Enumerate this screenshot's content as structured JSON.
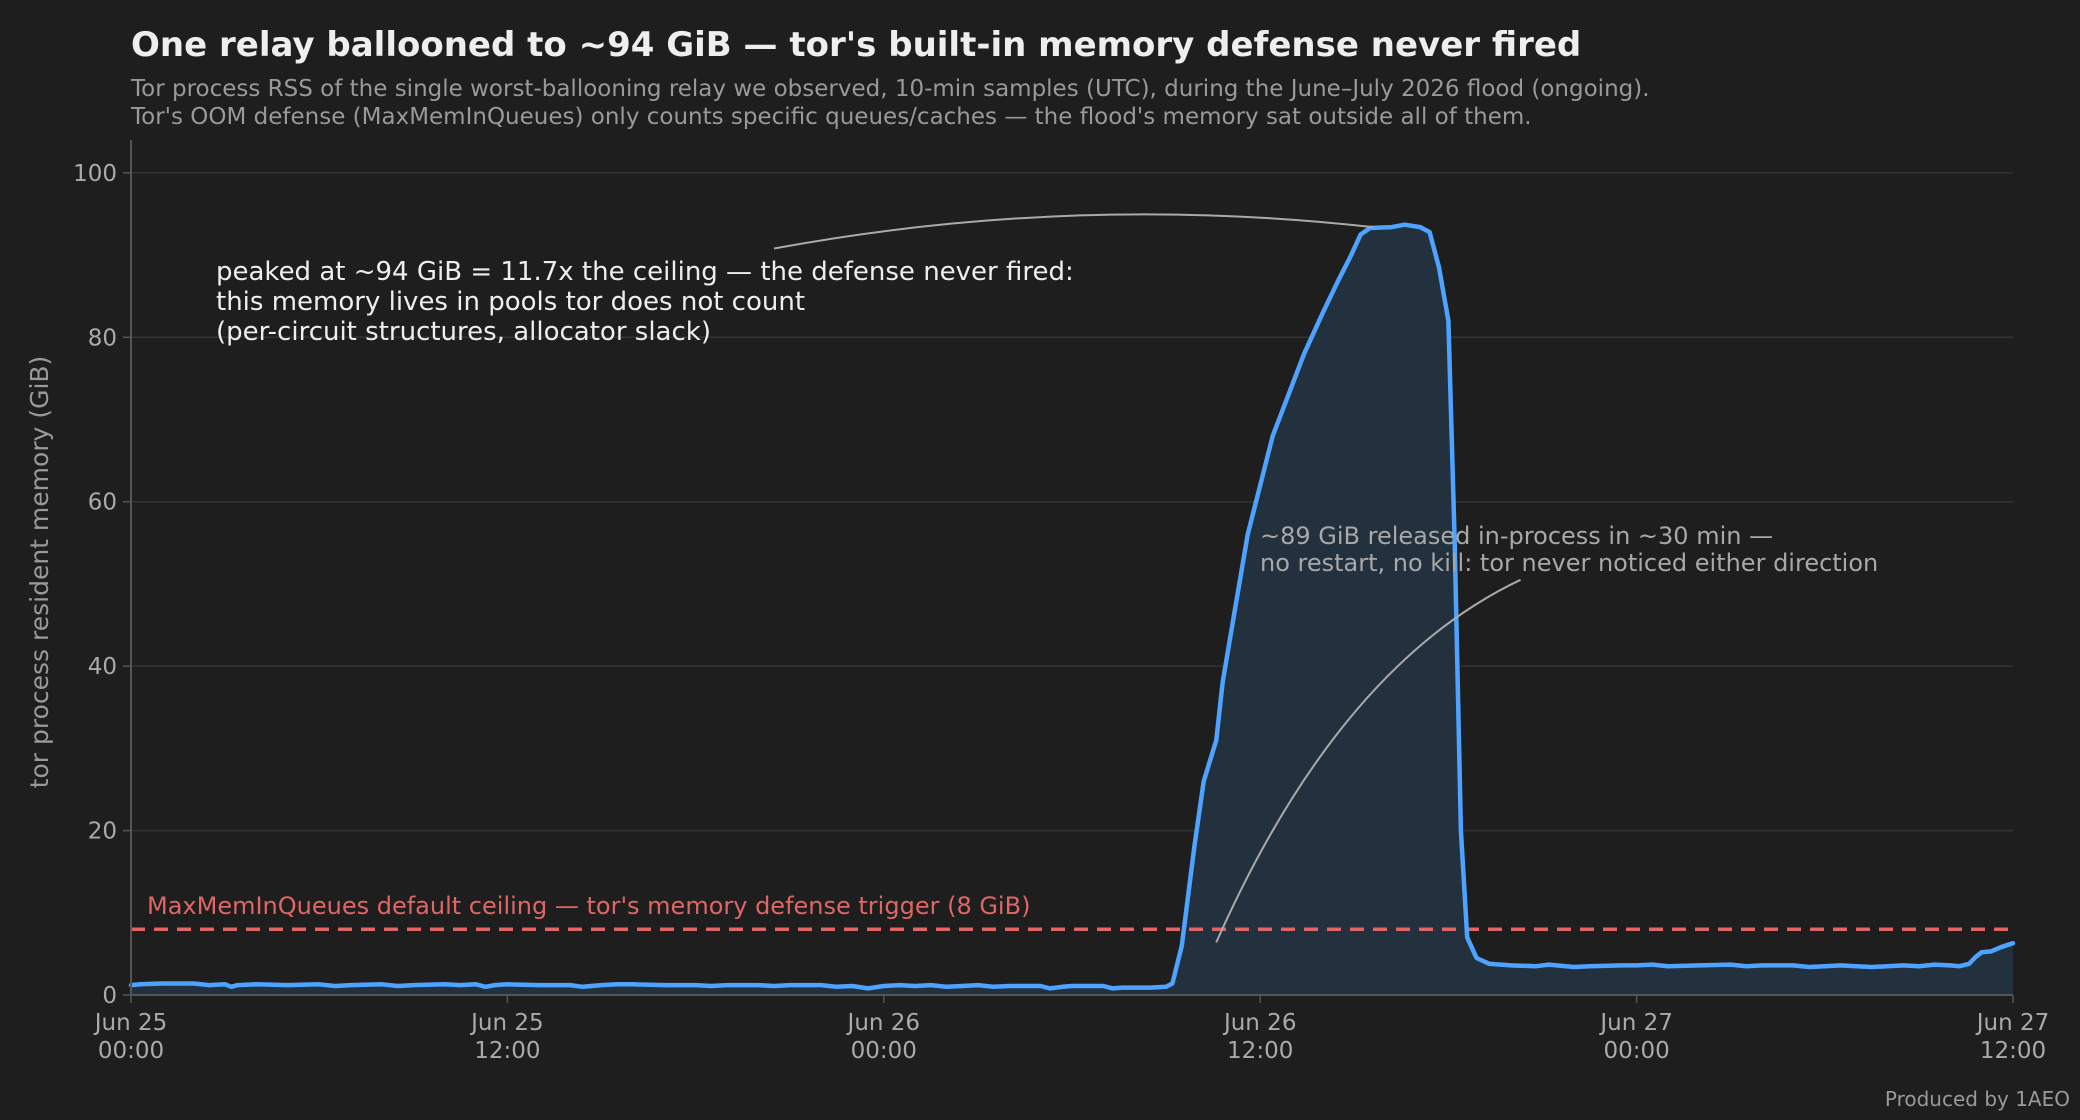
{
  "chart_data": {
    "type": "line",
    "title": "One relay ballooned to ~94 GiB — tor's built-in memory defense never fired",
    "subtitle": [
      "Tor process RSS of the single worst-ballooning relay we observed, 10-min samples (UTC), during the June–July 2026 flood (ongoing).",
      "Tor's OOM defense (MaxMemInQueues) only counts specific queues/caches — the flood's memory sat outside all of them."
    ],
    "ylabel": "tor process resident memory (GiB)",
    "xlabel": "",
    "ylim": [
      0,
      104
    ],
    "yticks": [
      0,
      20,
      40,
      60,
      80,
      100
    ],
    "xlim": [
      0,
      60
    ],
    "x_unit": "hours since Jun 25 00:00 UTC",
    "xticks": [
      {
        "x": 0,
        "label": [
          "Jun 25",
          "00:00"
        ]
      },
      {
        "x": 12,
        "label": [
          "Jun 25",
          "12:00"
        ]
      },
      {
        "x": 24,
        "label": [
          "Jun 26",
          "00:00"
        ]
      },
      {
        "x": 36,
        "label": [
          "Jun 26",
          "12:00"
        ]
      },
      {
        "x": 48,
        "label": [
          "Jun 27",
          "00:00"
        ]
      },
      {
        "x": 60,
        "label": [
          "Jun 27",
          "12:00"
        ]
      }
    ],
    "grid": true,
    "ceiling": {
      "value": 8,
      "label": "MaxMemInQueues default ceiling — tor's memory defense trigger (8 GiB)",
      "color": "#e06666"
    },
    "series": [
      {
        "name": "",
        "color": "#4da3ff",
        "fill": "#23303e",
        "points": [
          [
            0,
            1.2
          ],
          [
            0.3,
            1.3
          ],
          [
            1,
            1.4
          ],
          [
            2,
            1.4
          ],
          [
            2.5,
            1.2
          ],
          [
            3,
            1.3
          ],
          [
            3.2,
            1.0
          ],
          [
            3.4,
            1.2
          ],
          [
            4,
            1.3
          ],
          [
            5,
            1.2
          ],
          [
            6,
            1.3
          ],
          [
            6.5,
            1.1
          ],
          [
            7,
            1.2
          ],
          [
            8,
            1.3
          ],
          [
            8.5,
            1.1
          ],
          [
            9,
            1.2
          ],
          [
            10,
            1.3
          ],
          [
            10.5,
            1.2
          ],
          [
            11,
            1.3
          ],
          [
            11.3,
            1.0
          ],
          [
            11.6,
            1.2
          ],
          [
            12,
            1.3
          ],
          [
            13,
            1.2
          ],
          [
            14,
            1.2
          ],
          [
            14.4,
            1.0
          ],
          [
            15,
            1.2
          ],
          [
            15.5,
            1.3
          ],
          [
            16,
            1.3
          ],
          [
            17,
            1.2
          ],
          [
            18,
            1.2
          ],
          [
            18.5,
            1.1
          ],
          [
            19,
            1.2
          ],
          [
            20,
            1.2
          ],
          [
            20.5,
            1.1
          ],
          [
            21,
            1.2
          ],
          [
            22,
            1.2
          ],
          [
            22.5,
            1.0
          ],
          [
            23,
            1.1
          ],
          [
            23.5,
            0.8
          ],
          [
            24,
            1.1
          ],
          [
            24.5,
            1.2
          ],
          [
            25,
            1.1
          ],
          [
            25.5,
            1.2
          ],
          [
            26,
            1.0
          ],
          [
            26.5,
            1.1
          ],
          [
            27,
            1.2
          ],
          [
            27.5,
            1.0
          ],
          [
            28,
            1.1
          ],
          [
            29,
            1.1
          ],
          [
            29.3,
            0.8
          ],
          [
            29.7,
            1.0
          ],
          [
            30,
            1.1
          ],
          [
            31,
            1.1
          ],
          [
            31.3,
            0.8
          ],
          [
            31.6,
            0.9
          ],
          [
            32.5,
            0.9
          ],
          [
            33,
            1.0
          ],
          [
            33.2,
            1.4
          ],
          [
            33.5,
            6
          ],
          [
            33.9,
            18
          ],
          [
            34.2,
            26
          ],
          [
            34.6,
            31
          ],
          [
            34.8,
            38
          ],
          [
            35.2,
            47
          ],
          [
            35.6,
            56
          ],
          [
            36.0,
            62
          ],
          [
            36.4,
            68
          ],
          [
            36.9,
            73
          ],
          [
            37.4,
            78
          ],
          [
            38.0,
            83
          ],
          [
            38.5,
            87
          ],
          [
            38.9,
            90
          ],
          [
            39.2,
            92.5
          ],
          [
            39.5,
            93.3
          ],
          [
            40.2,
            93.4
          ],
          [
            40.6,
            93.7
          ],
          [
            41.1,
            93.4
          ],
          [
            41.4,
            92.8
          ],
          [
            41.7,
            88.5
          ],
          [
            42.0,
            82
          ],
          [
            42.2,
            55
          ],
          [
            42.4,
            20
          ],
          [
            42.6,
            7
          ],
          [
            42.9,
            4.5
          ],
          [
            43.3,
            3.8
          ],
          [
            44,
            3.6
          ],
          [
            44.8,
            3.5
          ],
          [
            45.2,
            3.7
          ],
          [
            46,
            3.4
          ],
          [
            46.5,
            3.5
          ],
          [
            47.5,
            3.6
          ],
          [
            48,
            3.6
          ],
          [
            48.5,
            3.7
          ],
          [
            49,
            3.5
          ],
          [
            50,
            3.6
          ],
          [
            51,
            3.7
          ],
          [
            51.5,
            3.5
          ],
          [
            52,
            3.6
          ],
          [
            53,
            3.6
          ],
          [
            53.5,
            3.4
          ],
          [
            54,
            3.5
          ],
          [
            54.5,
            3.6
          ],
          [
            55,
            3.5
          ],
          [
            55.5,
            3.4
          ],
          [
            56,
            3.5
          ],
          [
            56.5,
            3.6
          ],
          [
            57,
            3.5
          ],
          [
            57.5,
            3.7
          ],
          [
            58,
            3.6
          ],
          [
            58.3,
            3.5
          ],
          [
            58.6,
            3.8
          ],
          [
            58.8,
            4.6
          ],
          [
            59,
            5.2
          ],
          [
            59.3,
            5.3
          ],
          [
            59.6,
            5.8
          ],
          [
            60,
            6.3
          ]
        ]
      }
    ],
    "annotations": [
      {
        "lines": [
          "peaked at ~94 GiB = 11.7x the ceiling — the defense never fired:",
          "this memory lives in pools tor does not count",
          "(per-circuit structures, allocator slack)"
        ],
        "color": "#eeeeee",
        "arrow_from": [
          20.5,
          90.8
        ],
        "arrow_control": [
          30,
          97.5
        ],
        "arrow_to": [
          39.6,
          93.4
        ]
      },
      {
        "lines": [
          "~89 GiB released in-process in ~30 min —",
          "no restart, no kill: tor never noticed either direction"
        ],
        "color": "#a8a8a8",
        "arrow_from": [
          44.3,
          50.5
        ],
        "arrow_control": [
          38.5,
          40
        ],
        "arrow_to": [
          34.6,
          6.4
        ]
      }
    ],
    "credit": "Produced by 1AEO",
    "colors": {
      "background": "#1e1e1e",
      "grid": "#333333",
      "axis": "#555555",
      "title": "#eeeeee",
      "subtitle": "#999999",
      "tick": "#aaaaaa"
    }
  }
}
